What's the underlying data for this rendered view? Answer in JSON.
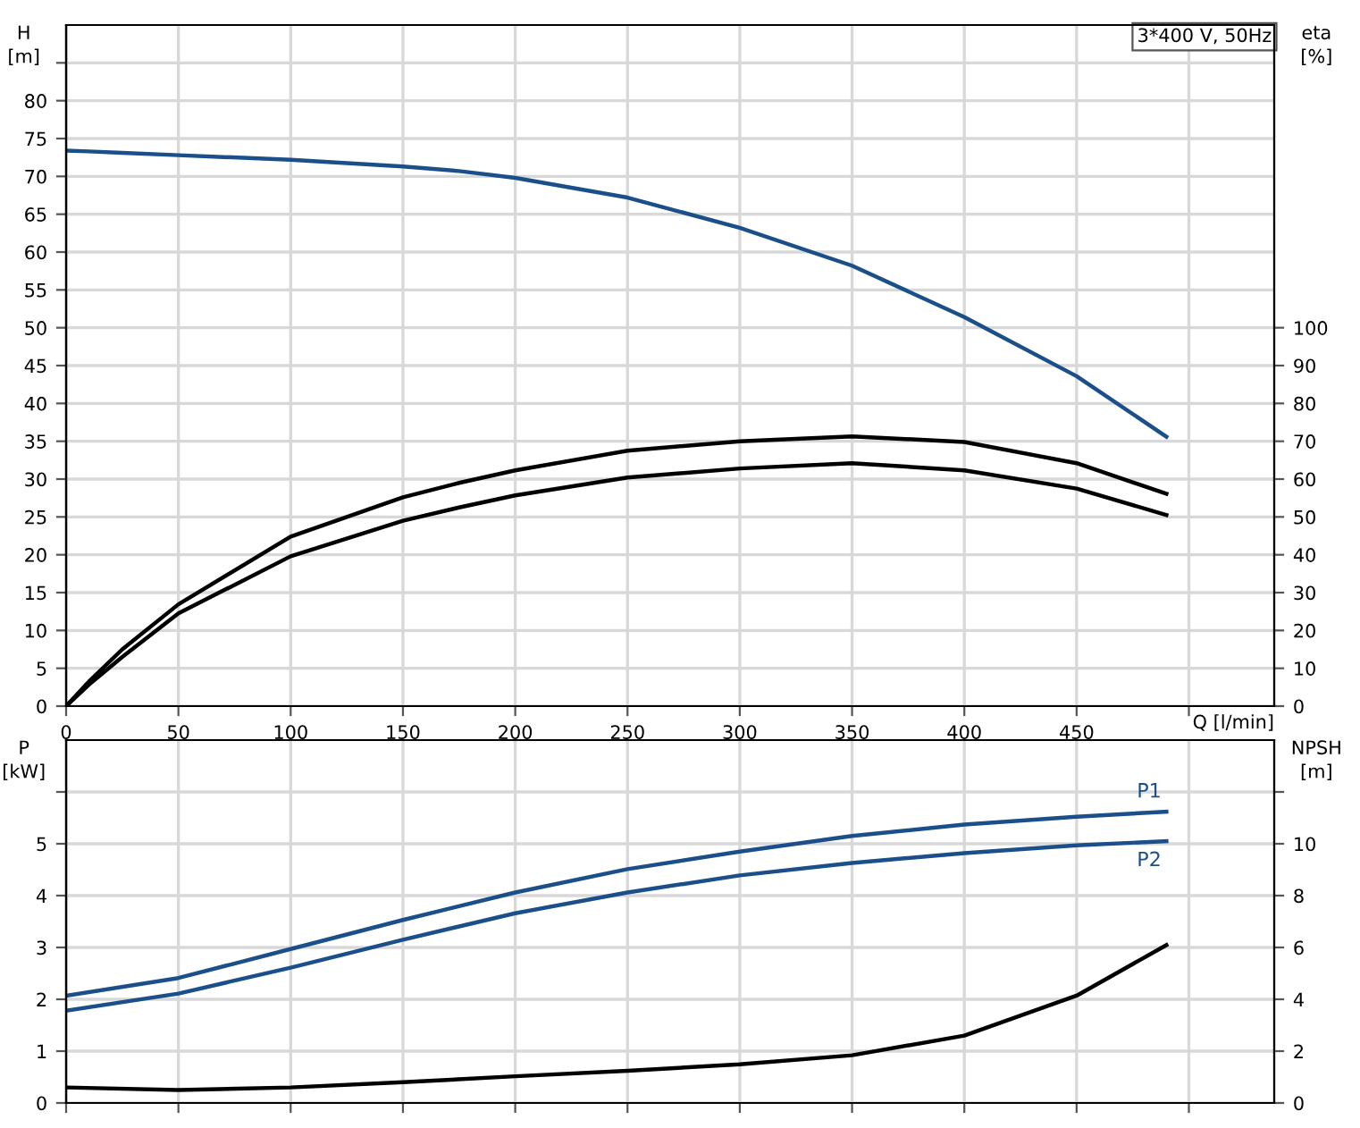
{
  "chart_data": [
    {
      "type": "line",
      "xlabel": "Q [l/min]",
      "ylabel": "H\n[m]",
      "y2label": "eta\n[%]",
      "annotations": [
        "3*400 V, 50Hz"
      ],
      "grid": true,
      "legend": false,
      "marker": "none",
      "line_style": "solid",
      "x": [
        0,
        10,
        25,
        50,
        100,
        150,
        175,
        200,
        250,
        300,
        350,
        400,
        450,
        490
      ],
      "xlim": [
        0,
        538
      ],
      "xticks": [
        0,
        50,
        100,
        150,
        200,
        250,
        300,
        350,
        400,
        450,
        {
          "value": 500,
          "label": null
        }
      ],
      "ylim": [
        0,
        90
      ],
      "yticks": [
        0,
        5,
        10,
        15,
        20,
        25,
        30,
        35,
        40,
        45,
        50,
        55,
        60,
        65,
        70,
        75,
        80,
        {
          "value": 85,
          "label": null
        }
      ],
      "y2lim": [
        0,
        180
      ],
      "y2ticks": [
        0,
        10,
        20,
        30,
        40,
        50,
        60,
        70,
        80,
        90,
        100
      ],
      "series": [
        {
          "color": "#1a4f8a",
          "values": [
            73.4,
            73.3,
            73.1,
            72.8,
            72.2,
            71.3,
            70.7,
            69.8,
            67.2,
            63.2,
            58.2,
            51.4,
            43.6,
            35.6
          ]
        },
        {
          "color": "#000000",
          "axis": "y2",
          "values": [
            0,
            6.4,
            15,
            26.9,
            44.8,
            55.2,
            59,
            62.3,
            67.5,
            70,
            71.3,
            69.8,
            64.2,
            56.1
          ]
        },
        {
          "color": "#000000",
          "axis": "y2",
          "values": [
            0,
            5.6,
            13,
            24.5,
            39.6,
            49,
            52.5,
            55.7,
            60.4,
            62.8,
            64.2,
            62.3,
            57.5,
            50.5
          ]
        }
      ]
    },
    {
      "type": "line",
      "ylabel": "P\n[kW]",
      "y2label": "NPSH\n[m]",
      "grid": true,
      "legend": false,
      "marker": "none",
      "line_style": "solid",
      "tick_labels": "y",
      "x": [
        0,
        50,
        100,
        150,
        200,
        250,
        300,
        350,
        400,
        450,
        490
      ],
      "xlim": [
        0,
        538
      ],
      "xticks": [
        0,
        50,
        100,
        150,
        200,
        250,
        300,
        350,
        400,
        450,
        500
      ],
      "ylim": [
        0,
        7
      ],
      "yticks": [
        0,
        1,
        2,
        3,
        4,
        5,
        {
          "value": 6,
          "label": null
        }
      ],
      "y2lim": [
        0,
        14
      ],
      "y2ticks": [
        0,
        2,
        4,
        6,
        8,
        10,
        {
          "value": 12,
          "label": null
        }
      ],
      "series": [
        {
          "name": "P1",
          "color": "#1a4f8a",
          "values": [
            2.07,
            2.41,
            2.97,
            3.53,
            4.06,
            4.51,
            4.85,
            5.15,
            5.37,
            5.52,
            5.62
          ]
        },
        {
          "name": "P2",
          "color": "#1a4f8a",
          "values": [
            1.78,
            2.11,
            2.61,
            3.15,
            3.66,
            4.06,
            4.39,
            4.63,
            4.82,
            4.97,
            5.05
          ]
        },
        {
          "color": "#000000",
          "axis": "y2",
          "values": [
            0.6,
            0.5,
            0.6,
            0.8,
            1.03,
            1.24,
            1.49,
            1.84,
            2.6,
            4.14,
            6.09
          ]
        }
      ]
    }
  ]
}
